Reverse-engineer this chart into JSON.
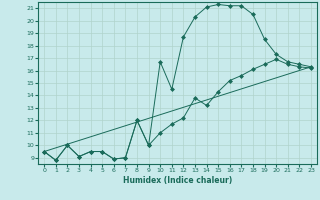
{
  "xlabel": "Humidex (Indice chaleur)",
  "bg_color": "#c8eaeb",
  "grid_color": "#b0d4cc",
  "line_color": "#1a6b5a",
  "xlim": [
    -0.5,
    23.5
  ],
  "ylim": [
    8.5,
    21.5
  ],
  "yticks": [
    9,
    10,
    11,
    12,
    13,
    14,
    15,
    16,
    17,
    18,
    19,
    20,
    21
  ],
  "xticks": [
    0,
    1,
    2,
    3,
    4,
    5,
    6,
    7,
    8,
    9,
    10,
    11,
    12,
    13,
    14,
    15,
    16,
    17,
    18,
    19,
    20,
    21,
    22,
    23
  ],
  "line1_x": [
    0,
    1,
    2,
    3,
    4,
    5,
    6,
    7,
    8,
    9,
    10,
    11,
    12,
    13,
    14,
    15,
    16,
    17,
    18,
    19,
    20,
    21,
    22,
    23
  ],
  "line1_y": [
    9.5,
    8.8,
    10.0,
    9.1,
    9.5,
    9.5,
    8.9,
    9.0,
    12.0,
    10.0,
    16.7,
    14.5,
    18.7,
    20.3,
    21.1,
    21.3,
    21.2,
    21.2,
    20.5,
    18.5,
    17.3,
    16.7,
    16.5,
    16.3
  ],
  "line2_x": [
    0,
    1,
    2,
    3,
    4,
    5,
    6,
    7,
    8,
    9,
    10,
    11,
    12,
    13,
    14,
    15,
    16,
    17,
    18,
    19,
    20,
    21,
    22,
    23
  ],
  "line2_y": [
    9.5,
    8.8,
    10.0,
    9.1,
    9.5,
    9.5,
    8.9,
    9.0,
    12.0,
    10.0,
    11.0,
    11.7,
    12.2,
    13.8,
    13.2,
    14.3,
    15.2,
    15.6,
    16.1,
    16.5,
    16.9,
    16.5,
    16.3,
    16.2
  ],
  "line3_x": [
    0,
    23
  ],
  "line3_y": [
    9.5,
    16.3
  ]
}
